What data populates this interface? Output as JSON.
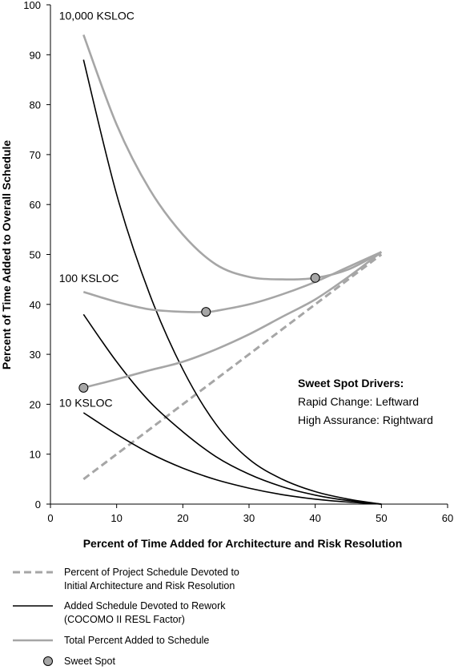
{
  "chart_data": {
    "type": "line",
    "xlabel": "Percent of Time Added for Architecture and Risk Resolution",
    "ylabel": "Percent of Time Added to Overall Schedule",
    "xlim": [
      0,
      60
    ],
    "ylim": [
      0,
      100
    ],
    "x_ticks": [
      "0",
      "10",
      "20",
      "30",
      "40",
      "50",
      "60"
    ],
    "y_ticks": [
      "0",
      "10",
      "20",
      "30",
      "40",
      "50",
      "60",
      "70",
      "80",
      "90",
      "100"
    ],
    "grid": false,
    "series": [
      {
        "name": "Percent of Project Schedule Devoted to Initial Architecture and Risk Resolution",
        "group": "architecture",
        "style": "dashed",
        "color": "#a6a6a6",
        "x": [
          5,
          50
        ],
        "y": [
          5,
          50
        ]
      },
      {
        "name": "Added Schedule Devoted to Rework (COCOMO II RESL Factor)",
        "group": "rework-10000",
        "style": "solid",
        "color": "#000000",
        "x": [
          5,
          10,
          15,
          20,
          25,
          30,
          35,
          40,
          45,
          50
        ],
        "y": [
          89,
          62,
          42,
          27,
          16,
          9,
          5,
          2.5,
          1,
          0
        ]
      },
      {
        "name": "Added Schedule Devoted to Rework (COCOMO II RESL Factor)",
        "group": "rework-100",
        "style": "solid",
        "color": "#000000",
        "x": [
          5,
          10,
          15,
          20,
          25,
          30,
          35,
          40,
          45,
          50
        ],
        "y": [
          38,
          28.5,
          20.5,
          14.5,
          9.5,
          6,
          3.5,
          1.8,
          0.7,
          0
        ]
      },
      {
        "name": "Added Schedule Devoted to Rework (COCOMO II RESL Factor)",
        "group": "rework-10",
        "style": "solid",
        "color": "#000000",
        "x": [
          5,
          10,
          15,
          20,
          25,
          30,
          35,
          40,
          45,
          50
        ],
        "y": [
          18.3,
          14,
          10.2,
          7.2,
          4.9,
          3.2,
          1.9,
          1,
          0.4,
          0
        ]
      },
      {
        "name": "Total Percent Added to Schedule",
        "group": "total-10000",
        "style": "solid",
        "color": "#a6a6a6",
        "x": [
          5,
          10,
          15,
          20,
          25,
          30,
          35,
          40,
          45,
          50
        ],
        "y": [
          94,
          76,
          63,
          54,
          48,
          45.5,
          45,
          45.3,
          47,
          50.5
        ]
      },
      {
        "name": "Total Percent Added to Schedule",
        "group": "total-100",
        "style": "solid",
        "color": "#a6a6a6",
        "x": [
          5,
          10,
          15,
          20,
          23.5,
          25,
          30,
          35,
          40,
          45,
          50
        ],
        "y": [
          42.5,
          40.5,
          39,
          38.5,
          38.5,
          38.7,
          40,
          42,
          44.5,
          47.5,
          50.5
        ]
      },
      {
        "name": "Total Percent Added to Schedule",
        "group": "total-10",
        "style": "solid",
        "color": "#a6a6a6",
        "x": [
          5,
          10,
          15,
          20,
          25,
          30,
          35,
          40,
          45,
          50
        ],
        "y": [
          23.3,
          25,
          26.8,
          28.5,
          31,
          34,
          37.5,
          41,
          45.5,
          50.5
        ]
      }
    ],
    "sweet_spots": {
      "name": "Sweet Spot",
      "color": "#a6a6a6",
      "points": [
        {
          "x": 40,
          "y": 45.3
        },
        {
          "x": 23.5,
          "y": 38.5
        },
        {
          "x": 5,
          "y": 23.3
        }
      ]
    },
    "annotations": [
      {
        "text": "10,000 KSLOC",
        "x": 1.3,
        "y": 97
      },
      {
        "text": "100 KSLOC",
        "x": 1.3,
        "y": 44.5
      },
      {
        "text": "10 KSLOC",
        "x": 1.3,
        "y": 19.5
      }
    ],
    "drivers": {
      "title": "Sweet Spot Drivers:",
      "lines": [
        "Rapid Change: Leftward",
        "High Assurance: Rightward"
      ]
    },
    "legend": [
      {
        "key": "dashed",
        "color": "#a6a6a6",
        "lines": [
          "Percent of Project Schedule Devoted to",
          "Initial Architecture and Risk Resolution"
        ]
      },
      {
        "key": "solid",
        "color": "#000000",
        "lines": [
          "Added Schedule Devoted to Rework",
          "(COCOMO II RESL Factor)"
        ]
      },
      {
        "key": "solid",
        "color": "#a6a6a6",
        "lines": [
          "Total Percent Added to Schedule"
        ]
      },
      {
        "key": "marker",
        "color": "#a6a6a6",
        "lines": [
          "Sweet Spot"
        ]
      }
    ]
  }
}
